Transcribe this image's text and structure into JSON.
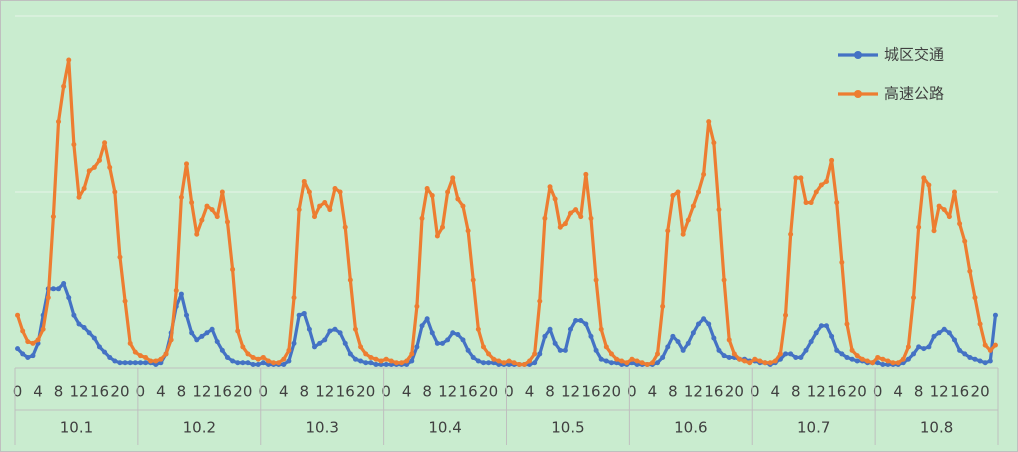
{
  "chart_data": {
    "type": "line",
    "categories": [
      "0",
      null,
      null,
      null,
      "4",
      null,
      null,
      null,
      "8",
      null,
      null,
      null,
      "12",
      null,
      null,
      null,
      "16",
      null,
      null,
      null,
      "20",
      null,
      null,
      null,
      "0",
      null,
      null,
      null,
      "4",
      null,
      null,
      null,
      "8",
      null,
      null,
      null,
      "12",
      null,
      null,
      null,
      "16",
      null,
      null,
      null,
      "20",
      null,
      null,
      null,
      "0",
      null,
      null,
      null,
      "4",
      null,
      null,
      null,
      "8",
      null,
      null,
      null,
      "12",
      null,
      null,
      null,
      "16",
      null,
      null,
      null,
      "20",
      null,
      null,
      null,
      "0",
      null,
      null,
      null,
      "4",
      null,
      null,
      null,
      "8",
      null,
      null,
      null,
      "12",
      null,
      null,
      null,
      "16",
      null,
      null,
      null,
      "20",
      null,
      null,
      null,
      "0",
      null,
      null,
      null,
      "4",
      null,
      null,
      null,
      "8",
      null,
      null,
      null,
      "12",
      null,
      null,
      null,
      "16",
      null,
      null,
      null,
      "20",
      null,
      null,
      null,
      "0",
      null,
      null,
      null,
      "4",
      null,
      null,
      null,
      "8",
      null,
      null,
      null,
      "12",
      null,
      null,
      null,
      "16",
      null,
      null,
      null,
      "20",
      null,
      null,
      null,
      "0",
      null,
      null,
      null,
      "4",
      null,
      null,
      null,
      "8",
      null,
      null,
      null,
      "12",
      null,
      null,
      null,
      "16",
      null,
      null,
      null,
      "20",
      null,
      null,
      null,
      "0",
      null,
      null,
      null,
      "4",
      null,
      null,
      null,
      "8",
      null,
      null,
      null,
      "12",
      null,
      null,
      null,
      "16",
      null,
      null,
      null,
      "20",
      null,
      null,
      null
    ],
    "groups": [
      "10.1",
      "10.2",
      "10.3",
      "10.4",
      "10.5",
      "10.6",
      "10.7",
      "10.8"
    ],
    "series": [
      {
        "name": "城区交通",
        "color": "#4472c4",
        "values": [
          11,
          8,
          6,
          7,
          14,
          30,
          45,
          45,
          45,
          48,
          40,
          30,
          25,
          23,
          20,
          17,
          12,
          9,
          6,
          4,
          3,
          3,
          3,
          3,
          3,
          3,
          3,
          2,
          3,
          8,
          20,
          35,
          42,
          30,
          20,
          16,
          18,
          20,
          22,
          15,
          10,
          6,
          4,
          3,
          3,
          3,
          2,
          2,
          3,
          2,
          2,
          2,
          2,
          4,
          14,
          30,
          31,
          22,
          12,
          14,
          16,
          21,
          22,
          20,
          14,
          8,
          5,
          4,
          3,
          3,
          2,
          2,
          2,
          2,
          2,
          2,
          2,
          4,
          12,
          24,
          28,
          20,
          14,
          14,
          16,
          20,
          19,
          16,
          10,
          6,
          4,
          3,
          3,
          3,
          2,
          2,
          2,
          2,
          2,
          2,
          2,
          3,
          8,
          18,
          22,
          14,
          10,
          10,
          22,
          27,
          27,
          25,
          18,
          10,
          5,
          4,
          3,
          3,
          2,
          2,
          3,
          2,
          2,
          2,
          2,
          3,
          6,
          12,
          18,
          15,
          10,
          14,
          20,
          25,
          28,
          25,
          17,
          10,
          7,
          6,
          6,
          5,
          5,
          4,
          4,
          3,
          3,
          2,
          3,
          5,
          8,
          8,
          6,
          6,
          10,
          15,
          20,
          24,
          24,
          18,
          10,
          8,
          6,
          5,
          4,
          4,
          3,
          3,
          3,
          2,
          2,
          2,
          2,
          3,
          5,
          8,
          12,
          11,
          12,
          18,
          20,
          22,
          20,
          16,
          10,
          8,
          6,
          5,
          4,
          3,
          4,
          30
        ]
      },
      {
        "name": "高速公路",
        "color": "#ed7d31",
        "values": [
          30,
          21,
          15,
          14,
          16,
          22,
          40,
          86,
          140,
          160,
          175,
          127,
          97,
          102,
          112,
          114,
          118,
          128,
          114,
          100,
          63,
          38,
          14,
          9,
          7,
          6,
          4,
          4,
          5,
          8,
          16,
          44,
          97,
          116,
          94,
          76,
          84,
          92,
          90,
          86,
          100,
          83,
          56,
          21,
          12,
          8,
          6,
          5,
          6,
          4,
          3,
          3,
          5,
          10,
          40,
          90,
          106,
          100,
          86,
          92,
          94,
          90,
          102,
          100,
          80,
          50,
          22,
          12,
          8,
          6,
          5,
          4,
          5,
          4,
          3,
          3,
          4,
          8,
          35,
          85,
          102,
          98,
          75,
          80,
          100,
          108,
          96,
          92,
          78,
          50,
          22,
          12,
          8,
          5,
          4,
          3,
          4,
          3,
          2,
          2,
          4,
          8,
          38,
          85,
          103,
          96,
          80,
          82,
          88,
          90,
          86,
          110,
          85,
          50,
          22,
          12,
          8,
          5,
          4,
          3,
          5,
          4,
          3,
          2,
          3,
          8,
          35,
          78,
          98,
          100,
          76,
          84,
          92,
          100,
          110,
          140,
          128,
          90,
          50,
          16,
          8,
          5,
          4,
          3,
          5,
          4,
          3,
          3,
          4,
          8,
          30,
          76,
          108,
          108,
          94,
          94,
          100,
          104,
          106,
          118,
          94,
          60,
          25,
          10,
          7,
          5,
          4,
          3,
          6,
          5,
          4,
          3,
          3,
          5,
          12,
          40,
          80,
          108,
          104,
          78,
          92,
          90,
          86,
          100,
          82,
          72,
          55,
          40,
          25,
          13,
          10,
          13
        ]
      }
    ],
    "ylim": [
      0,
      200
    ],
    "yticks": [
      0,
      100,
      200
    ],
    "grid": true,
    "legend": "top-right"
  }
}
